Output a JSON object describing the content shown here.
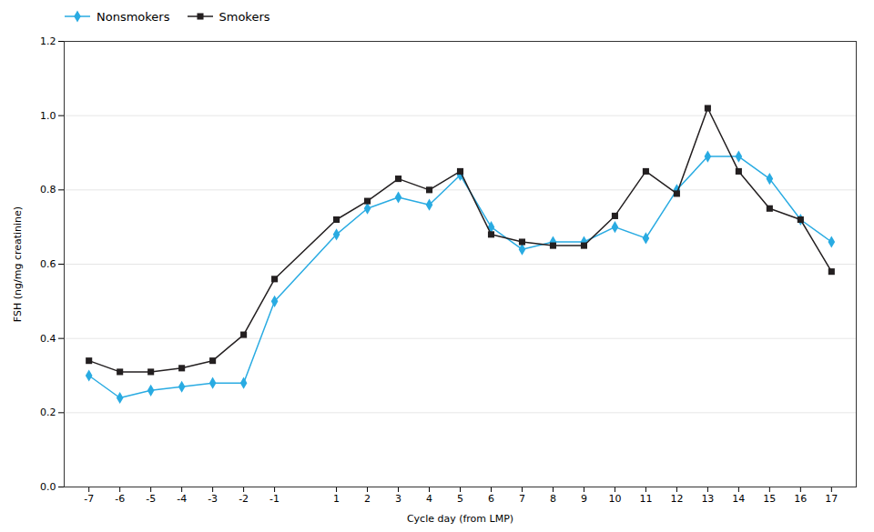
{
  "chart_data": {
    "type": "line",
    "xlabel": "Cycle day (from LMP)",
    "ylabel": "FSH (ng/mg creatinine)",
    "x": [
      -7,
      -6,
      -5,
      -4,
      -3,
      -2,
      -1,
      1,
      2,
      3,
      4,
      5,
      6,
      7,
      8,
      9,
      10,
      11,
      12,
      13,
      14,
      15,
      16,
      17
    ],
    "series": [
      {
        "name": "Nonsmokers",
        "color": "#29ABE2",
        "marker": "diamond",
        "values": [
          0.3,
          0.24,
          0.26,
          0.27,
          0.28,
          0.28,
          0.5,
          0.68,
          0.75,
          0.78,
          0.76,
          0.84,
          0.7,
          0.64,
          0.66,
          0.66,
          0.7,
          0.67,
          0.8,
          0.89,
          0.89,
          0.83,
          0.72,
          0.66
        ]
      },
      {
        "name": "Smokers",
        "color": "#231F20",
        "marker": "square",
        "values": [
          0.34,
          0.31,
          0.31,
          0.32,
          0.34,
          0.41,
          0.56,
          0.72,
          0.77,
          0.83,
          0.8,
          0.85,
          0.68,
          0.66,
          0.65,
          0.65,
          0.73,
          0.85,
          0.79,
          1.02,
          0.85,
          0.75,
          0.72,
          0.58
        ]
      }
    ],
    "xlim": [
      -7.8,
      17.8
    ],
    "xticks": [
      -7,
      -6,
      -5,
      -4,
      -3,
      -2,
      -1,
      1,
      2,
      3,
      4,
      5,
      6,
      7,
      8,
      9,
      10,
      11,
      12,
      13,
      14,
      15,
      16,
      17
    ],
    "ylim": [
      0,
      1.2
    ],
    "yticks": [
      {
        "value": 0,
        "label": "0.0"
      },
      0.2,
      0.4,
      0.6,
      0.8,
      {
        "value": 1.0,
        "label": "1.0"
      },
      1.2
    ],
    "grid": true,
    "legend": "upper left"
  }
}
